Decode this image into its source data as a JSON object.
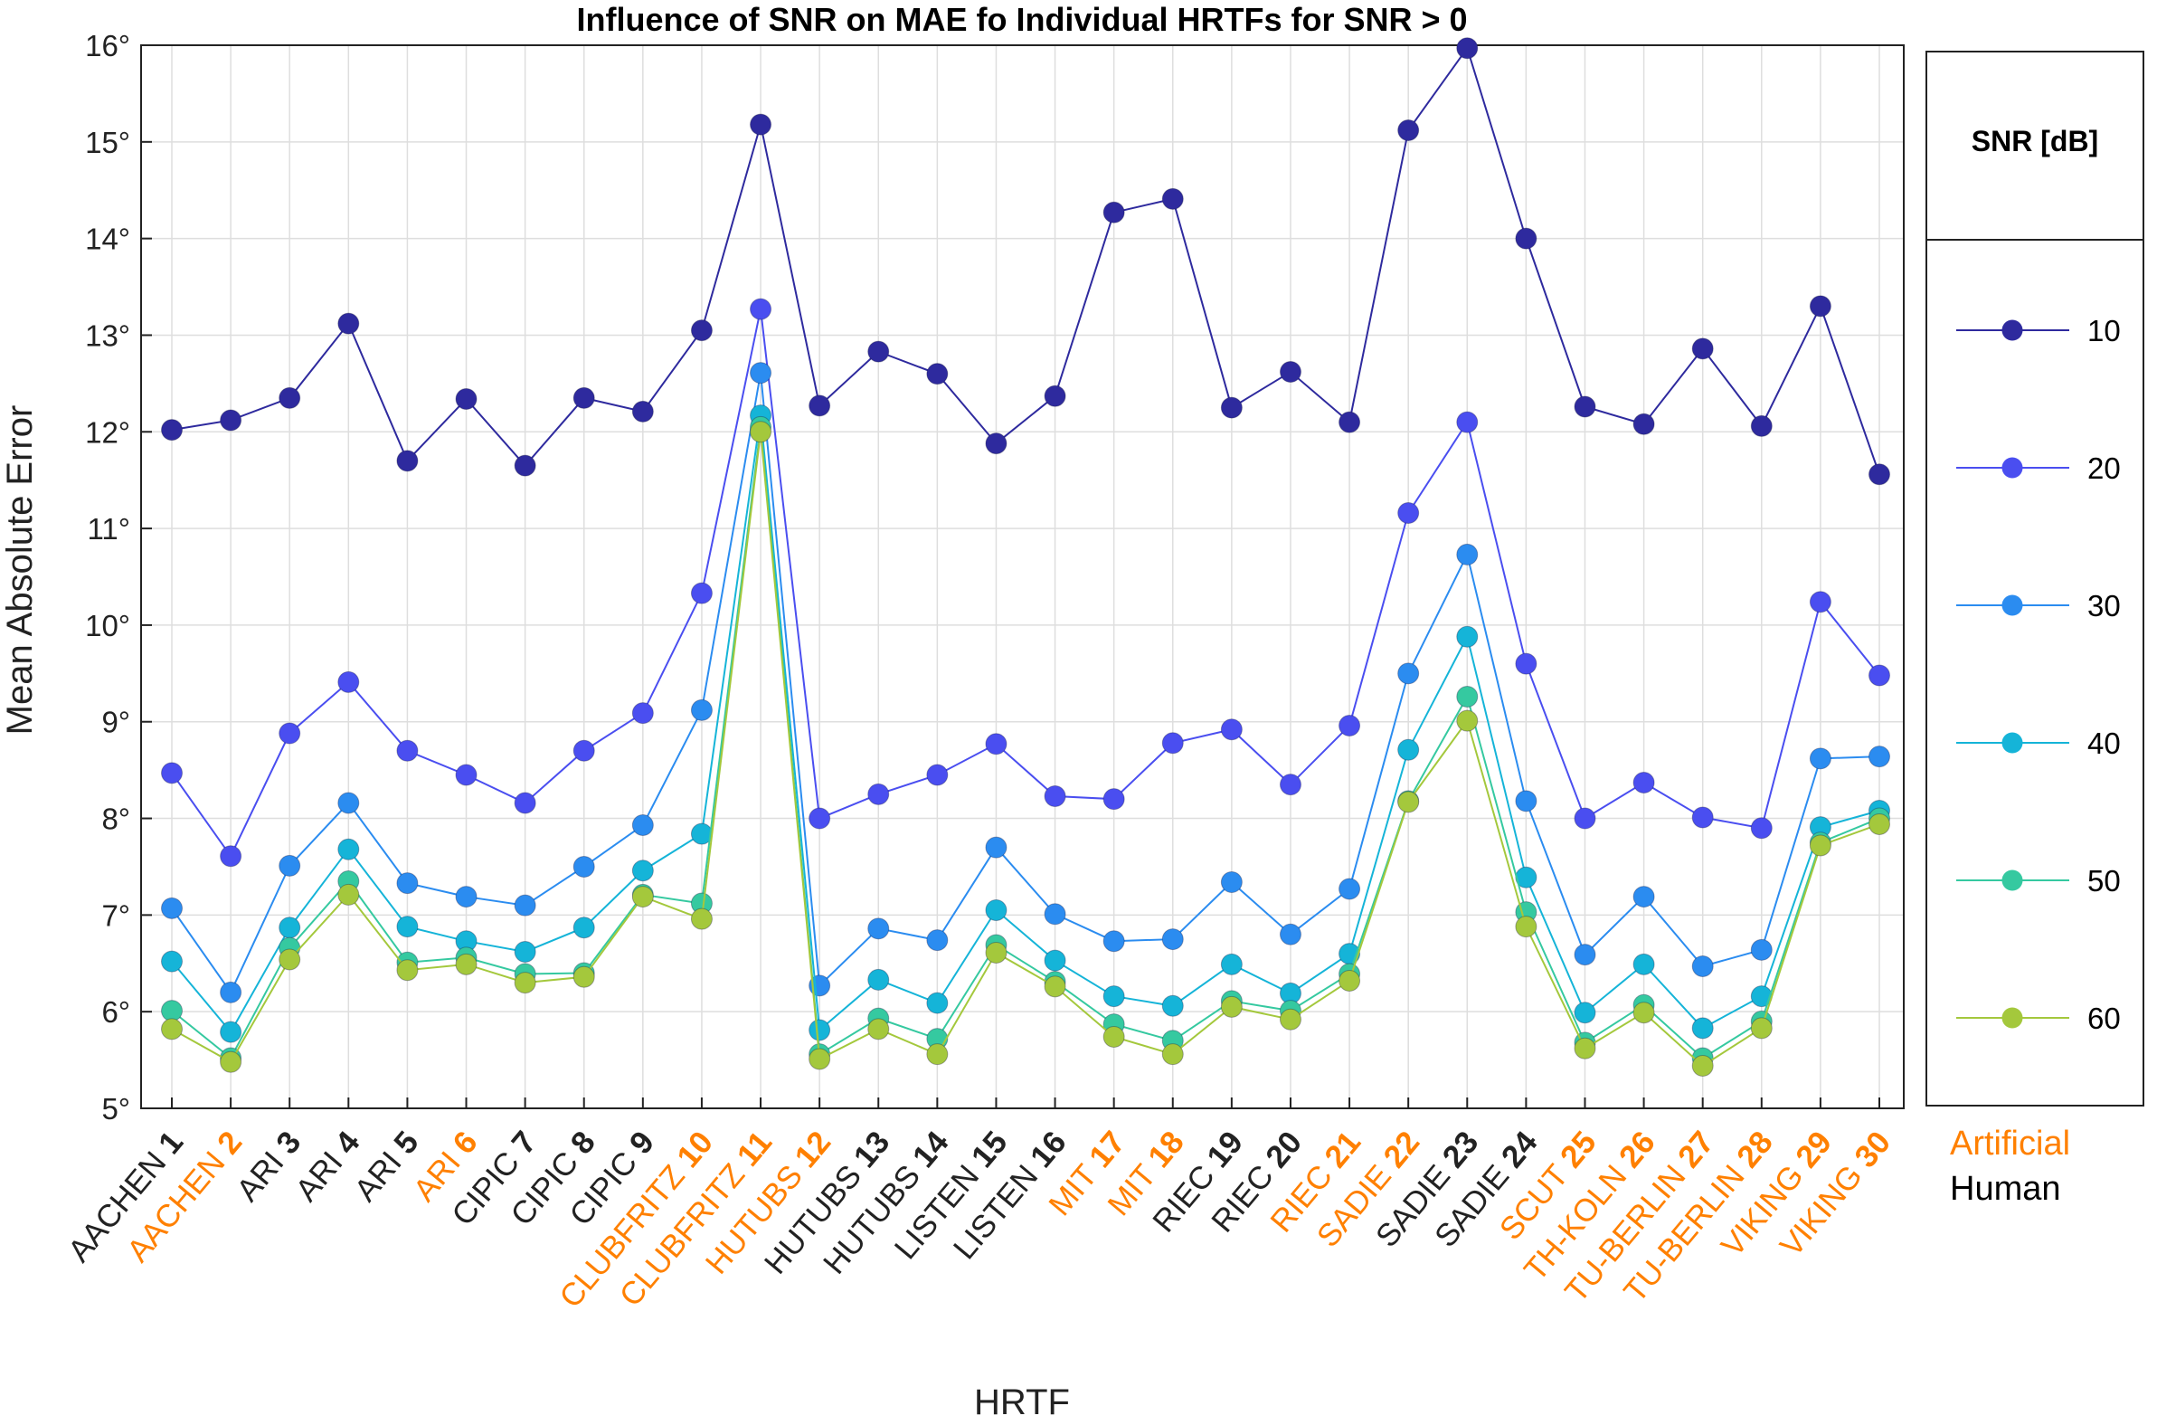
{
  "chart_data": {
    "type": "line",
    "title": "Influence of SNR on MAE fo Individual HRTFs for SNR > 0",
    "xlabel": "HRTF",
    "ylabel": "Mean Absolute Error",
    "ylim": [
      5,
      16
    ],
    "yticks": [
      "5°",
      "6°",
      "7°",
      "8°",
      "9°",
      "10°",
      "11°",
      "12°",
      "13°",
      "14°",
      "15°",
      "16°"
    ],
    "grid": true,
    "legend": {
      "title": "SNR [dB]",
      "placement": "right-outside"
    },
    "categories": [
      {
        "name": "AACHEN",
        "num": "1",
        "type": "human"
      },
      {
        "name": "AACHEN",
        "num": "2",
        "type": "artificial"
      },
      {
        "name": "ARI",
        "num": "3",
        "type": "human"
      },
      {
        "name": "ARI",
        "num": "4",
        "type": "human"
      },
      {
        "name": "ARI",
        "num": "5",
        "type": "human"
      },
      {
        "name": "ARI",
        "num": "6",
        "type": "artificial"
      },
      {
        "name": "CIPIC",
        "num": "7",
        "type": "human"
      },
      {
        "name": "CIPIC",
        "num": "8",
        "type": "human"
      },
      {
        "name": "CIPIC",
        "num": "9",
        "type": "human"
      },
      {
        "name": "CLUBFRITZ",
        "num": "10",
        "type": "artificial"
      },
      {
        "name": "CLUBFRITZ",
        "num": "11",
        "type": "artificial"
      },
      {
        "name": "HUTUBS",
        "num": "12",
        "type": "artificial"
      },
      {
        "name": "HUTUBS",
        "num": "13",
        "type": "human"
      },
      {
        "name": "HUTUBS",
        "num": "14",
        "type": "human"
      },
      {
        "name": "LISTEN",
        "num": "15",
        "type": "human"
      },
      {
        "name": "LISTEN",
        "num": "16",
        "type": "human"
      },
      {
        "name": "MIT",
        "num": "17",
        "type": "artificial"
      },
      {
        "name": "MIT",
        "num": "18",
        "type": "artificial"
      },
      {
        "name": "RIEC",
        "num": "19",
        "type": "human"
      },
      {
        "name": "RIEC",
        "num": "20",
        "type": "human"
      },
      {
        "name": "RIEC",
        "num": "21",
        "type": "artificial"
      },
      {
        "name": "SADIE",
        "num": "22",
        "type": "artificial"
      },
      {
        "name": "SADIE",
        "num": "23",
        "type": "human"
      },
      {
        "name": "SADIE",
        "num": "24",
        "type": "human"
      },
      {
        "name": "SCUT",
        "num": "25",
        "type": "artificial"
      },
      {
        "name": "TH-KOLN",
        "num": "26",
        "type": "artificial"
      },
      {
        "name": "TU-BERLIN",
        "num": "27",
        "type": "artificial"
      },
      {
        "name": "TU-BERLIN",
        "num": "28",
        "type": "artificial"
      },
      {
        "name": "VIKING",
        "num": "29",
        "type": "artificial"
      },
      {
        "name": "VIKING",
        "num": "30",
        "type": "artificial"
      }
    ],
    "series": [
      {
        "name": "10",
        "color": "#2e2a9e",
        "values": [
          12.02,
          12.12,
          12.35,
          13.12,
          11.7,
          12.34,
          11.65,
          12.35,
          12.21,
          13.05,
          15.18,
          12.27,
          12.83,
          12.6,
          11.88,
          12.37,
          14.27,
          14.41,
          12.25,
          12.62,
          12.1,
          15.12,
          15.97,
          14.0,
          12.26,
          12.08,
          12.86,
          12.06,
          13.3,
          11.56
        ]
      },
      {
        "name": "20",
        "color": "#4a4ef0",
        "values": [
          8.47,
          7.61,
          8.88,
          9.41,
          8.7,
          8.45,
          8.16,
          8.7,
          9.09,
          10.33,
          13.27,
          8.0,
          8.25,
          8.45,
          8.77,
          8.23,
          8.2,
          8.78,
          8.92,
          8.35,
          8.96,
          11.16,
          12.1,
          9.6,
          8.0,
          8.37,
          8.01,
          7.9,
          10.24,
          9.48
        ]
      },
      {
        "name": "30",
        "color": "#2b8cf0",
        "values": [
          7.07,
          6.2,
          7.51,
          8.16,
          7.33,
          7.19,
          7.1,
          7.5,
          7.93,
          9.12,
          12.61,
          6.27,
          6.86,
          6.74,
          7.7,
          7.01,
          6.73,
          6.75,
          7.34,
          6.8,
          7.27,
          9.5,
          10.73,
          8.18,
          6.59,
          7.19,
          6.47,
          6.64,
          8.62,
          8.64
        ]
      },
      {
        "name": "40",
        "color": "#15b4d8",
        "values": [
          6.52,
          5.79,
          6.87,
          7.68,
          6.88,
          6.73,
          6.62,
          6.87,
          7.46,
          7.84,
          12.17,
          5.81,
          6.33,
          6.09,
          7.05,
          6.53,
          6.16,
          6.06,
          6.49,
          6.19,
          6.6,
          8.71,
          9.88,
          7.39,
          5.99,
          6.49,
          5.83,
          6.16,
          7.91,
          8.08
        ]
      },
      {
        "name": "50",
        "color": "#35c9a0",
        "values": [
          6.01,
          5.52,
          6.66,
          7.35,
          6.51,
          6.56,
          6.39,
          6.4,
          7.21,
          7.12,
          12.05,
          5.56,
          5.93,
          5.72,
          6.69,
          6.31,
          5.87,
          5.7,
          6.11,
          6.01,
          6.39,
          8.18,
          9.26,
          7.03,
          5.68,
          6.07,
          5.52,
          5.9,
          7.75,
          8.0
        ]
      },
      {
        "name": "60",
        "color": "#a4c83c",
        "values": [
          5.82,
          5.48,
          6.54,
          7.21,
          6.43,
          6.49,
          6.3,
          6.36,
          7.19,
          6.96,
          12.0,
          5.51,
          5.82,
          5.56,
          6.61,
          6.26,
          5.74,
          5.56,
          6.05,
          5.92,
          6.32,
          8.17,
          9.01,
          6.88,
          5.62,
          5.99,
          5.44,
          5.83,
          7.72,
          7.94
        ]
      }
    ],
    "category_key": [
      {
        "label": "Artificial",
        "color": "#ff8000"
      },
      {
        "label": "Human",
        "color": "#000000"
      }
    ]
  }
}
